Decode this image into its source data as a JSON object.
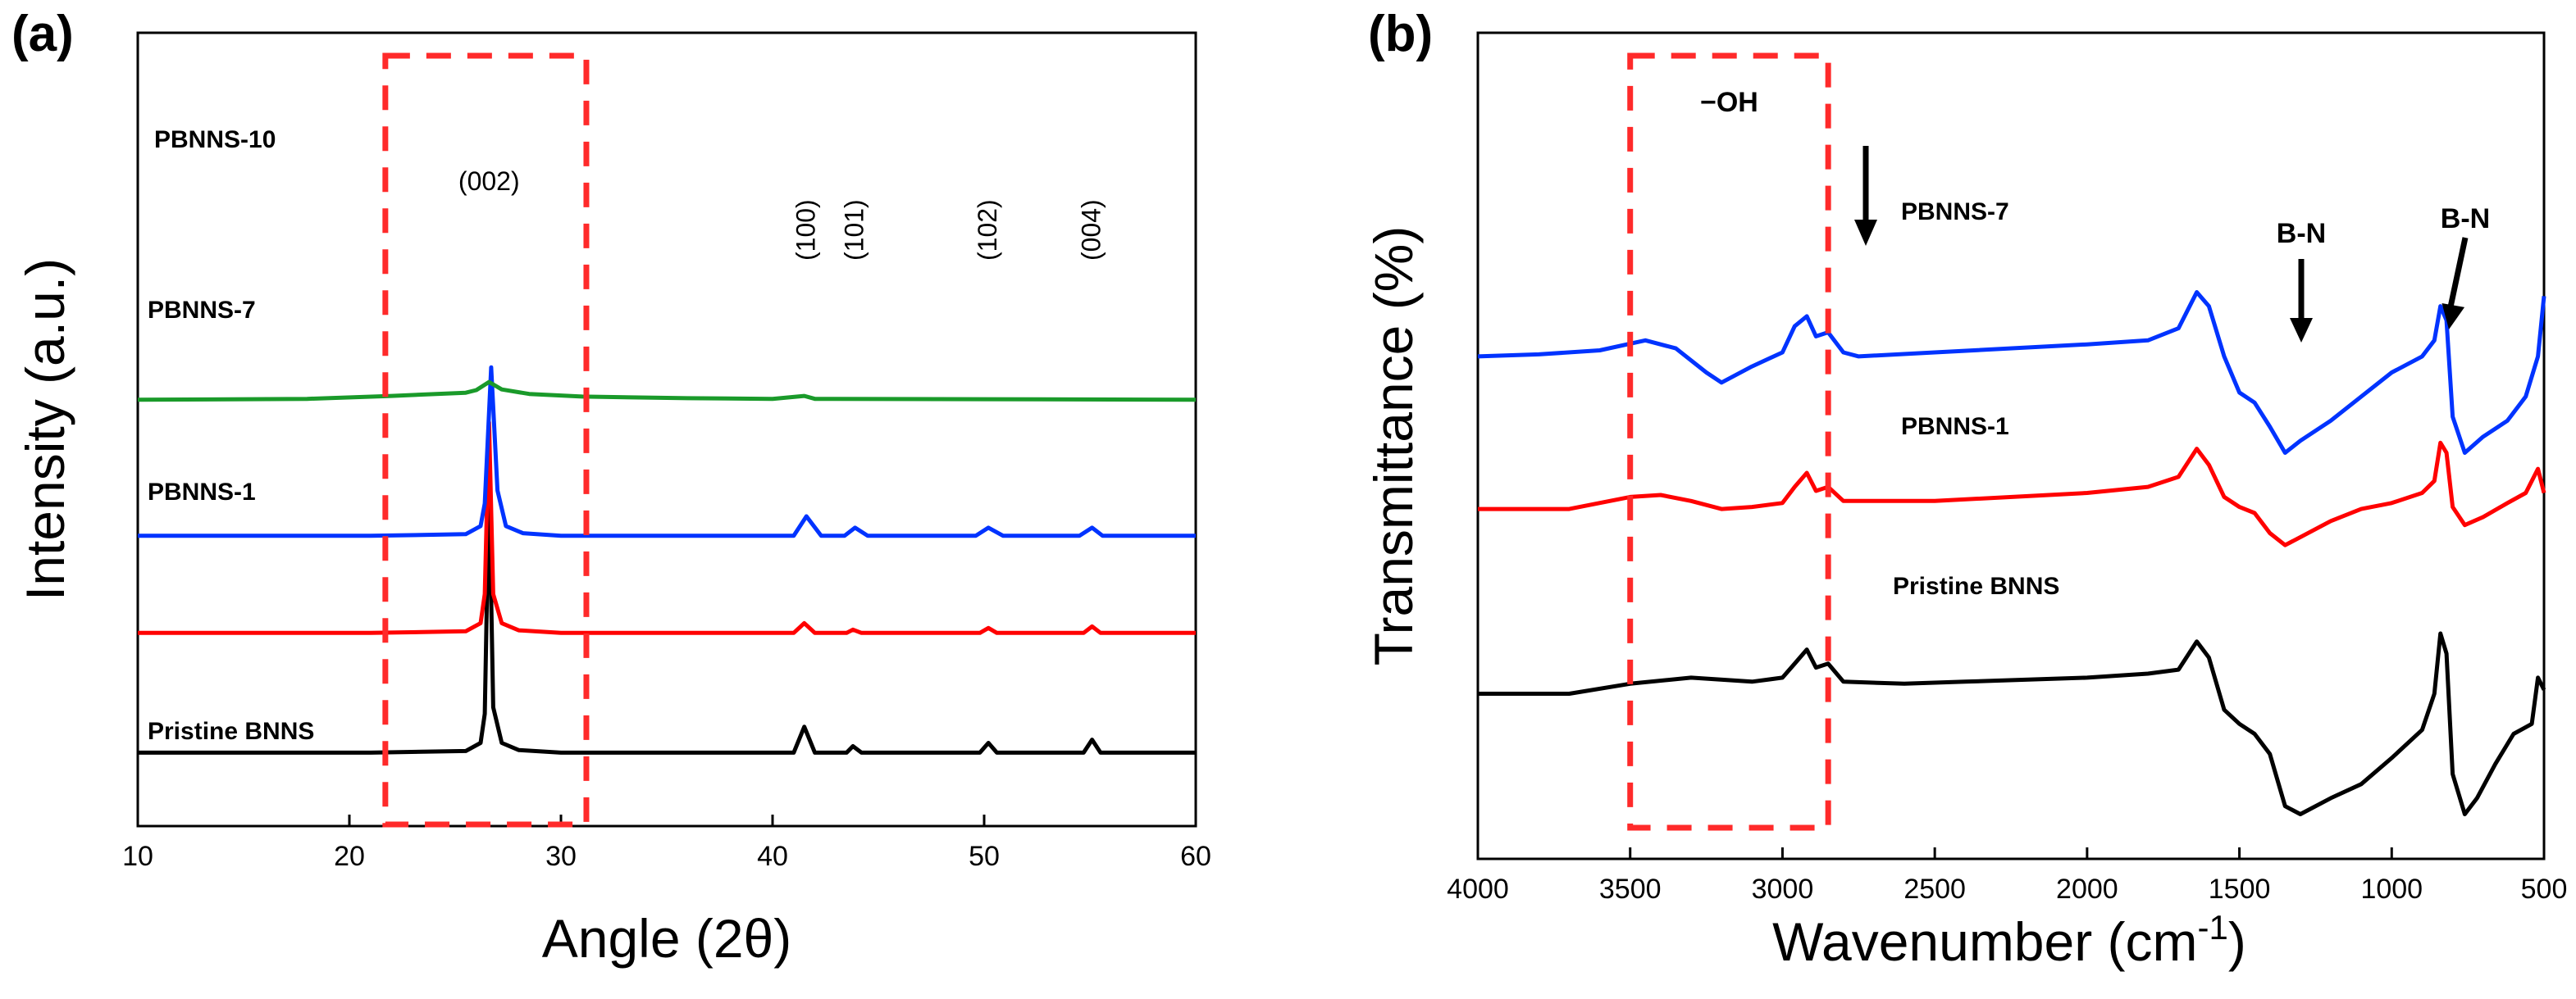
{
  "panel_a": {
    "label": "(a)",
    "chart_data": {
      "type": "line",
      "title": "",
      "xlabel": "Angle (2θ)",
      "ylabel": "Intensity (a.u.)",
      "xlim": [
        10,
        60
      ],
      "xticks": [
        10,
        20,
        30,
        40,
        50,
        60
      ],
      "y_units": "arbitrary, stacked with offsets",
      "highlight_box": {
        "x_range": [
          21.7,
          31.2
        ],
        "style": "dashed",
        "color": "#ff2a2a"
      },
      "peak_labels": [
        {
          "text": "(002)",
          "x": 26.6
        },
        {
          "text": "(100)",
          "x": 41.6
        },
        {
          "text": "(101)",
          "x": 43.9
        },
        {
          "text": "(102)",
          "x": 50.2
        },
        {
          "text": "(004)",
          "x": 55.1
        }
      ],
      "series": [
        {
          "name": "Pristine BNNS",
          "color": "#000000",
          "offset": 8,
          "points": [
            [
              10,
              0
            ],
            [
              21,
              0
            ],
            [
              25.5,
              0.5
            ],
            [
              26.2,
              3
            ],
            [
              26.4,
              12
            ],
            [
              26.6,
              83
            ],
            [
              26.8,
              14
            ],
            [
              27.2,
              3
            ],
            [
              28,
              0.8
            ],
            [
              30,
              0
            ],
            [
              41,
              0
            ],
            [
              41.5,
              8
            ],
            [
              42,
              0
            ],
            [
              43.5,
              0
            ],
            [
              43.8,
              2
            ],
            [
              44.2,
              0
            ],
            [
              49.8,
              0
            ],
            [
              50.2,
              3
            ],
            [
              50.6,
              0
            ],
            [
              54.7,
              0
            ],
            [
              55.1,
              4
            ],
            [
              55.5,
              0
            ],
            [
              60,
              0
            ]
          ]
        },
        {
          "name": "PBNNS-1",
          "color": "#ff0000",
          "offset": 45,
          "points": [
            [
              10,
              0
            ],
            [
              21,
              0
            ],
            [
              25.5,
              0.5
            ],
            [
              26.2,
              3
            ],
            [
              26.4,
              12
            ],
            [
              26.6,
              65
            ],
            [
              26.8,
              12
            ],
            [
              27.2,
              3
            ],
            [
              28,
              0.8
            ],
            [
              30,
              0
            ],
            [
              41,
              0
            ],
            [
              41.5,
              3
            ],
            [
              42,
              0
            ],
            [
              43.5,
              0
            ],
            [
              43.8,
              1
            ],
            [
              44.2,
              0
            ],
            [
              49.8,
              0
            ],
            [
              50.2,
              1.5
            ],
            [
              50.6,
              0
            ],
            [
              54.7,
              0
            ],
            [
              55.1,
              2
            ],
            [
              55.5,
              0
            ],
            [
              60,
              0
            ]
          ]
        },
        {
          "name": "PBNNS-7",
          "color": "#0033ff",
          "offset": 75,
          "points": [
            [
              10,
              0
            ],
            [
              21,
              0
            ],
            [
              25.5,
              0.5
            ],
            [
              26.2,
              3
            ],
            [
              26.4,
              10
            ],
            [
              26.7,
              52
            ],
            [
              27,
              14
            ],
            [
              27.4,
              3
            ],
            [
              28.2,
              0.8
            ],
            [
              30,
              0
            ],
            [
              41,
              0
            ],
            [
              41.6,
              6
            ],
            [
              42.3,
              0
            ],
            [
              43.4,
              0
            ],
            [
              43.9,
              2.5
            ],
            [
              44.5,
              0
            ],
            [
              49.6,
              0
            ],
            [
              50.2,
              2.5
            ],
            [
              50.9,
              0
            ],
            [
              54.5,
              0
            ],
            [
              55.1,
              2.5
            ],
            [
              55.6,
              0
            ],
            [
              60,
              0
            ]
          ]
        },
        {
          "name": "PBNNS-10",
          "color": "#1a9a2a",
          "offset": 117,
          "points": [
            [
              10,
              0
            ],
            [
              18,
              0.3
            ],
            [
              22,
              1.2
            ],
            [
              25.5,
              2.2
            ],
            [
              26,
              3
            ],
            [
              26.6,
              5.5
            ],
            [
              27.2,
              3.2
            ],
            [
              28.5,
              1.8
            ],
            [
              31,
              1
            ],
            [
              36,
              0.5
            ],
            [
              40,
              0.3
            ],
            [
              41.5,
              1.2
            ],
            [
              42,
              0.3
            ],
            [
              50,
              0.2
            ],
            [
              60,
              0
            ]
          ]
        }
      ]
    }
  },
  "panel_b": {
    "label": "(b)",
    "chart_data": {
      "type": "line",
      "title": "",
      "xlabel": "Wavenumber (cm",
      "xlabel_sup": "-1",
      "xlabel_end": ")",
      "ylabel": "Transmittance (%)",
      "xlim": [
        4000,
        500
      ],
      "xticks": [
        4000,
        3500,
        3000,
        2500,
        2000,
        1500,
        1000,
        500
      ],
      "y_units": "arbitrary, stacked with offsets",
      "highlight_box": {
        "x_range": [
          3500,
          2850
        ],
        "style": "dashed",
        "color": "#ff2a2a",
        "label": "−OH"
      },
      "annotations": [
        {
          "text": "B-N",
          "x": 1300
        },
        {
          "text": "B-N",
          "x": 720
        }
      ],
      "series": [
        {
          "name": "Pristine BNNS",
          "color": "#000000",
          "offset": 10,
          "points": [
            [
              4000,
              60
            ],
            [
              3700,
              60
            ],
            [
              3500,
              65
            ],
            [
              3300,
              68
            ],
            [
              3100,
              66
            ],
            [
              3000,
              68
            ],
            [
              2960,
              75
            ],
            [
              2920,
              82
            ],
            [
              2890,
              73
            ],
            [
              2850,
              75
            ],
            [
              2800,
              66
            ],
            [
              2600,
              65
            ],
            [
              2400,
              66
            ],
            [
              2000,
              68
            ],
            [
              1800,
              70
            ],
            [
              1700,
              72
            ],
            [
              1640,
              86
            ],
            [
              1600,
              78
            ],
            [
              1550,
              52
            ],
            [
              1500,
              45
            ],
            [
              1450,
              40
            ],
            [
              1400,
              30
            ],
            [
              1350,
              4
            ],
            [
              1300,
              0
            ],
            [
              1200,
              8
            ],
            [
              1100,
              15
            ],
            [
              1000,
              28
            ],
            [
              900,
              42
            ],
            [
              860,
              60
            ],
            [
              840,
              90
            ],
            [
              820,
              80
            ],
            [
              800,
              20
            ],
            [
              760,
              0
            ],
            [
              720,
              8
            ],
            [
              660,
              25
            ],
            [
              600,
              40
            ],
            [
              540,
              45
            ],
            [
              520,
              68
            ],
            [
              500,
              62
            ]
          ]
        },
        {
          "name": "PBNNS-1",
          "color": "#ff0000",
          "offset": 118,
          "points": [
            [
              4000,
              44
            ],
            [
              3700,
              44
            ],
            [
              3500,
              50
            ],
            [
              3400,
              51
            ],
            [
              3300,
              48
            ],
            [
              3200,
              44
            ],
            [
              3100,
              45
            ],
            [
              3000,
              47
            ],
            [
              2960,
              55
            ],
            [
              2920,
              62
            ],
            [
              2890,
              53
            ],
            [
              2850,
              55
            ],
            [
              2800,
              48
            ],
            [
              2500,
              48
            ],
            [
              2000,
              52
            ],
            [
              1800,
              55
            ],
            [
              1700,
              60
            ],
            [
              1640,
              74
            ],
            [
              1600,
              66
            ],
            [
              1550,
              50
            ],
            [
              1500,
              45
            ],
            [
              1450,
              42
            ],
            [
              1400,
              32
            ],
            [
              1350,
              26
            ],
            [
              1300,
              30
            ],
            [
              1200,
              38
            ],
            [
              1100,
              44
            ],
            [
              1000,
              47
            ],
            [
              900,
              52
            ],
            [
              860,
              58
            ],
            [
              840,
              77
            ],
            [
              820,
              72
            ],
            [
              800,
              45
            ],
            [
              760,
              36
            ],
            [
              700,
              40
            ],
            [
              620,
              47
            ],
            [
              560,
              52
            ],
            [
              520,
              64
            ],
            [
              500,
              52
            ]
          ]
        },
        {
          "name": "PBNNS-7",
          "color": "#0033ff",
          "offset": 118,
          "points": [
            [
              4000,
              120
            ],
            [
              3800,
              121
            ],
            [
              3600,
              123
            ],
            [
              3450,
              128
            ],
            [
              3350,
              124
            ],
            [
              3250,
              112
            ],
            [
              3200,
              107
            ],
            [
              3100,
              115
            ],
            [
              3000,
              122
            ],
            [
              2960,
              135
            ],
            [
              2920,
              140
            ],
            [
              2890,
              130
            ],
            [
              2850,
              132
            ],
            [
              2800,
              122
            ],
            [
              2750,
              120
            ],
            [
              2500,
              122
            ],
            [
              2000,
              126
            ],
            [
              1800,
              128
            ],
            [
              1700,
              134
            ],
            [
              1640,
              152
            ],
            [
              1600,
              145
            ],
            [
              1550,
              120
            ],
            [
              1500,
              102
            ],
            [
              1450,
              97
            ],
            [
              1400,
              85
            ],
            [
              1350,
              72
            ],
            [
              1300,
              78
            ],
            [
              1200,
              88
            ],
            [
              1100,
              100
            ],
            [
              1000,
              112
            ],
            [
              900,
              120
            ],
            [
              860,
              128
            ],
            [
              840,
              145
            ],
            [
              820,
              138
            ],
            [
              800,
              90
            ],
            [
              760,
              72
            ],
            [
              700,
              80
            ],
            [
              620,
              88
            ],
            [
              560,
              100
            ],
            [
              520,
              120
            ],
            [
              500,
              150
            ]
          ]
        }
      ]
    }
  },
  "series_labels": {
    "a": [
      "PBNNS-10",
      "PBNNS-7",
      "PBNNS-1",
      "Pristine BNNS"
    ],
    "b": [
      "PBNNS-7",
      "PBNNS-1",
      "Pristine BNNS"
    ]
  },
  "colors": {
    "black": "#000000",
    "red": "#ff0000",
    "blue": "#0033ff",
    "green": "#1a9a2a",
    "highlight": "#ff2a2a"
  }
}
